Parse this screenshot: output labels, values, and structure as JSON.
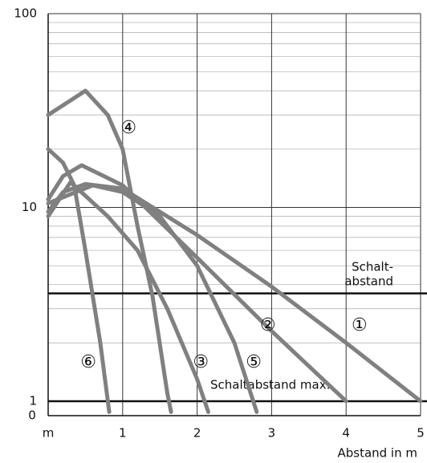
{
  "chart_data": {
    "type": "line",
    "x_label": "Abstand in m",
    "y_origin_label": "0",
    "xlim": [
      0,
      5
    ],
    "ylim": [
      0.842,
      100
    ],
    "log_y": true,
    "xticks": [
      {
        "value": 0,
        "label": "m"
      },
      1,
      2,
      3,
      4,
      5
    ],
    "yticks": [
      1,
      10,
      100
    ],
    "yminorticks": [
      2,
      3,
      4,
      5,
      6,
      7,
      8,
      9,
      20,
      30,
      40,
      50,
      60,
      70,
      80,
      90
    ],
    "grid": true,
    "series": [
      {
        "name": "①",
        "color": "#808080",
        "x": [
          0,
          0.2,
          0.5,
          1,
          2,
          3,
          4,
          5
        ],
        "values": [
          9.5,
          12,
          13.2,
          12.5,
          7.2,
          3.9,
          2,
          1
        ]
      },
      {
        "name": "②",
        "color": "#808080",
        "x": [
          0,
          0.2,
          0.45,
          1,
          2,
          3,
          4
        ],
        "values": [
          11,
          14.5,
          16.5,
          13,
          5.5,
          2.3,
          1
        ]
      },
      {
        "name": "③",
        "color": "#808080",
        "x": [
          0,
          0.3,
          0.8,
          1.2,
          1.6,
          2,
          2.15
        ],
        "values": [
          9,
          13.5,
          9,
          6,
          3,
          1.3,
          0.88
        ]
      },
      {
        "name": "④",
        "color": "#808080",
        "x": [
          0,
          0.5,
          0.8,
          1,
          1.2,
          1.4,
          1.6,
          1.65
        ],
        "values": [
          30,
          40,
          30,
          20,
          8,
          3.5,
          1.1,
          0.88
        ]
      },
      {
        "name": "⑤",
        "color": "#808080",
        "x": [
          0,
          0.6,
          1,
          1.5,
          2,
          2.5,
          2.8
        ],
        "values": [
          10.5,
          13,
          12,
          9,
          5,
          2,
          0.88
        ]
      },
      {
        "name": "⑥",
        "color": "#808080",
        "x": [
          0,
          0.2,
          0.35,
          0.5,
          0.7,
          0.82
        ],
        "values": [
          20,
          17,
          13,
          6,
          2,
          0.88
        ]
      }
    ],
    "reference_lines": [
      {
        "value": 3.6,
        "label_lines": [
          "Schalt-",
          "abstand"
        ],
        "color": "#111111"
      },
      {
        "value": 1,
        "label_lines": [
          "Schaltabstand max."
        ],
        "color": "#111111"
      }
    ]
  }
}
